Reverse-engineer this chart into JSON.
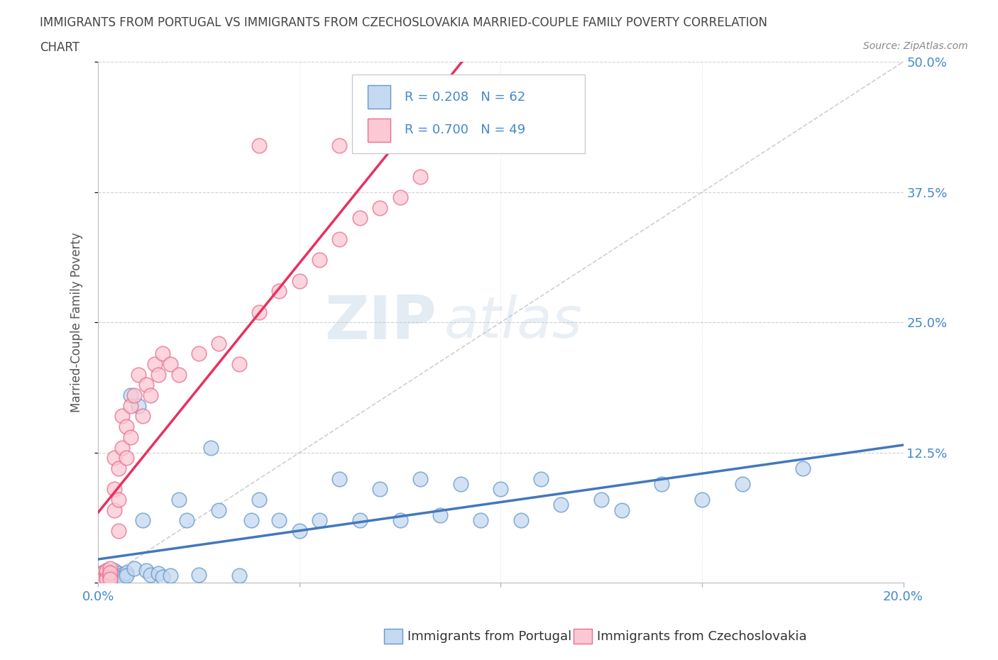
{
  "title_line1": "IMMIGRANTS FROM PORTUGAL VS IMMIGRANTS FROM CZECHOSLOVAKIA MARRIED-COUPLE FAMILY POVERTY CORRELATION",
  "title_line2": "CHART",
  "source": "Source: ZipAtlas.com",
  "ylabel": "Married-Couple Family Poverty",
  "xlim": [
    0.0,
    0.2
  ],
  "ylim": [
    0.0,
    0.5
  ],
  "yticks": [
    0.0,
    0.125,
    0.25,
    0.375,
    0.5
  ],
  "ytick_labels": [
    "",
    "12.5%",
    "25.0%",
    "37.5%",
    "50.0%"
  ],
  "xticks": [
    0.0,
    0.05,
    0.1,
    0.15,
    0.2
  ],
  "R_portugal": 0.208,
  "N_portugal": 62,
  "R_czech": 0.7,
  "N_czech": 49,
  "color_portugal_fill": "#c5d9f0",
  "color_portugal_edge": "#6699cc",
  "color_czech_fill": "#fbc8d4",
  "color_czech_edge": "#e87090",
  "line_color_portugal": "#4477bb",
  "line_color_czech": "#e83060",
  "diag_line_color": "#bbbbbb",
  "legend_label_portugal": "Immigrants from Portugal",
  "legend_label_czech": "Immigrants from Czechoslovakia",
  "watermark_zip": "ZIP",
  "watermark_atlas": "atlas",
  "background_color": "#ffffff",
  "title_color": "#444444",
  "axis_label_color": "#555555",
  "tick_label_color": "#4488cc",
  "grid_color": "#cccccc",
  "portugal_x": [
    0.001,
    0.001,
    0.001,
    0.001,
    0.002,
    0.002,
    0.002,
    0.002,
    0.002,
    0.002,
    0.003,
    0.003,
    0.003,
    0.003,
    0.003,
    0.004,
    0.004,
    0.005,
    0.005,
    0.005,
    0.006,
    0.006,
    0.007,
    0.007,
    0.008,
    0.009,
    0.01,
    0.011,
    0.012,
    0.013,
    0.015,
    0.016,
    0.018,
    0.02,
    0.022,
    0.025,
    0.028,
    0.03,
    0.035,
    0.038,
    0.04,
    0.045,
    0.05,
    0.055,
    0.06,
    0.065,
    0.07,
    0.075,
    0.08,
    0.085,
    0.09,
    0.095,
    0.1,
    0.105,
    0.11,
    0.115,
    0.125,
    0.13,
    0.14,
    0.15,
    0.16,
    0.175
  ],
  "portugal_y": [
    0.005,
    0.01,
    0.008,
    0.003,
    0.008,
    0.006,
    0.012,
    0.004,
    0.009,
    0.007,
    0.005,
    0.01,
    0.008,
    0.006,
    0.003,
    0.007,
    0.012,
    0.005,
    0.009,
    0.004,
    0.008,
    0.006,
    0.01,
    0.007,
    0.18,
    0.014,
    0.17,
    0.06,
    0.012,
    0.008,
    0.009,
    0.006,
    0.007,
    0.08,
    0.06,
    0.008,
    0.13,
    0.07,
    0.007,
    0.06,
    0.08,
    0.06,
    0.05,
    0.06,
    0.1,
    0.06,
    0.09,
    0.06,
    0.1,
    0.065,
    0.095,
    0.06,
    0.09,
    0.06,
    0.1,
    0.075,
    0.08,
    0.07,
    0.095,
    0.08,
    0.095,
    0.11
  ],
  "czech_x": [
    0.001,
    0.001,
    0.001,
    0.002,
    0.002,
    0.002,
    0.002,
    0.003,
    0.003,
    0.003,
    0.003,
    0.003,
    0.004,
    0.004,
    0.004,
    0.005,
    0.005,
    0.005,
    0.006,
    0.006,
    0.007,
    0.007,
    0.008,
    0.008,
    0.009,
    0.01,
    0.011,
    0.012,
    0.013,
    0.014,
    0.015,
    0.016,
    0.018,
    0.02,
    0.025,
    0.03,
    0.035,
    0.04,
    0.045,
    0.05,
    0.055,
    0.06,
    0.065,
    0.07,
    0.075,
    0.08,
    0.04,
    0.06,
    0.08
  ],
  "czech_y": [
    0.005,
    0.009,
    0.003,
    0.01,
    0.006,
    0.012,
    0.004,
    0.008,
    0.014,
    0.006,
    0.01,
    0.004,
    0.12,
    0.09,
    0.07,
    0.11,
    0.08,
    0.05,
    0.13,
    0.16,
    0.15,
    0.12,
    0.17,
    0.14,
    0.18,
    0.2,
    0.16,
    0.19,
    0.18,
    0.21,
    0.2,
    0.22,
    0.21,
    0.2,
    0.22,
    0.23,
    0.21,
    0.26,
    0.28,
    0.29,
    0.31,
    0.33,
    0.35,
    0.36,
    0.37,
    0.39,
    0.42,
    0.42,
    0.43
  ]
}
